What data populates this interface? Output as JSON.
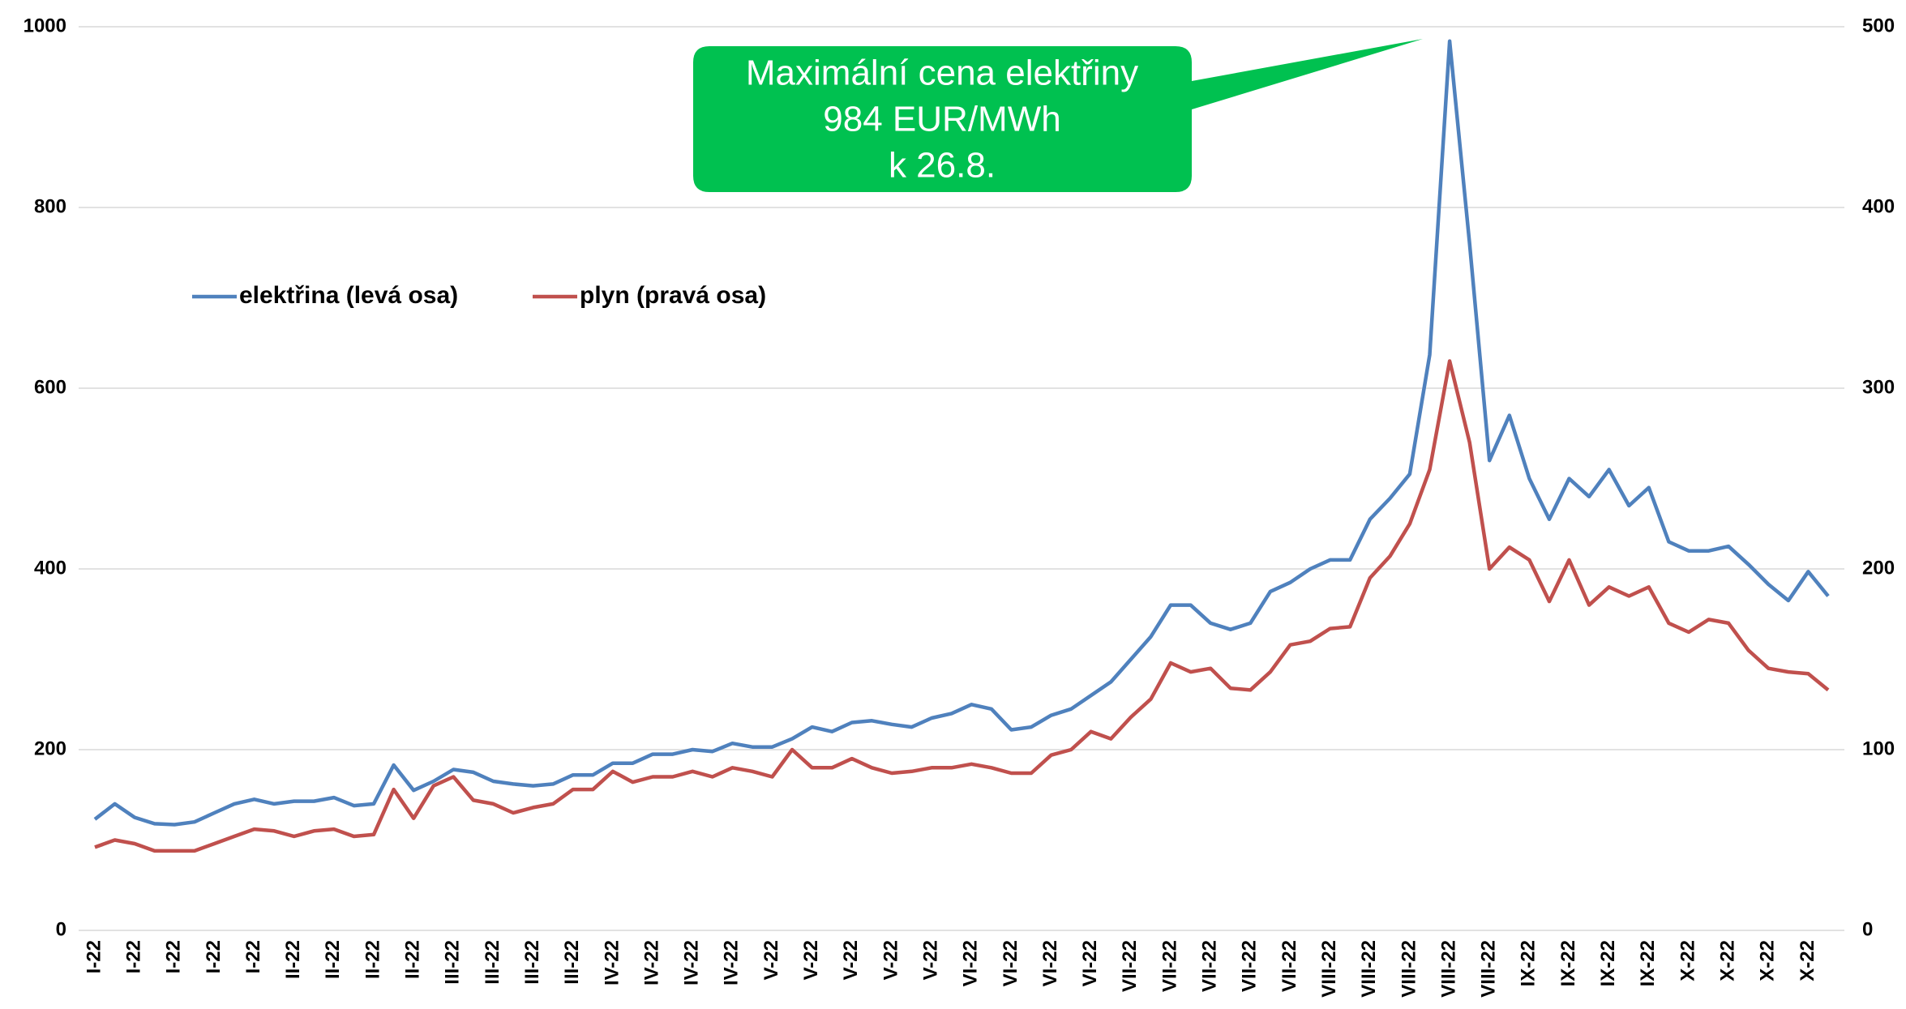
{
  "chart_data": {
    "type": "line",
    "categories": [
      "I-22",
      null,
      "I-22",
      null,
      "I-22",
      null,
      "I-22",
      null,
      "I-22",
      null,
      "II-22",
      null,
      "II-22",
      null,
      "II-22",
      null,
      "II-22",
      null,
      "III-22",
      null,
      "III-22",
      null,
      "III-22",
      null,
      "III-22",
      null,
      "IV-22",
      null,
      "IV-22",
      null,
      "IV-22",
      null,
      "IV-22",
      null,
      "V-22",
      null,
      "V-22",
      null,
      "V-22",
      null,
      "V-22",
      null,
      "V-22",
      null,
      "VI-22",
      null,
      "VI-22",
      null,
      "VI-22",
      null,
      "VI-22",
      null,
      "VII-22",
      null,
      "VII-22",
      null,
      "VII-22",
      null,
      "VII-22",
      null,
      "VII-22",
      null,
      "VIII-22",
      null,
      "VIII-22",
      null,
      "VIII-22",
      null,
      "VIII-22",
      null,
      "VIII-22",
      null,
      "IX-22",
      null,
      "IX-22",
      null,
      "IX-22",
      null,
      "IX-22",
      null,
      "X-22",
      null,
      "X-22",
      null,
      "X-22",
      null,
      "X-22",
      null
    ],
    "series": [
      {
        "name": "elektřina (levá osa)",
        "color": "#4f81bd",
        "axis": "y",
        "values": [
          123,
          140,
          125,
          118,
          117,
          120,
          130,
          140,
          145,
          140,
          143,
          143,
          147,
          138,
          140,
          183,
          155,
          165,
          178,
          175,
          165,
          162,
          160,
          162,
          172,
          172,
          185,
          185,
          195,
          195,
          200,
          198,
          207,
          203,
          203,
          212,
          225,
          220,
          230,
          232,
          228,
          225,
          235,
          240,
          250,
          245,
          222,
          225,
          238,
          245,
          260,
          275,
          300,
          325,
          360,
          360,
          340,
          333,
          340,
          375,
          385,
          400,
          410,
          410,
          455,
          478,
          505,
          637,
          984,
          760,
          520,
          570,
          500,
          455,
          500,
          480,
          510,
          470,
          490,
          430,
          420,
          420,
          425,
          405,
          383,
          365,
          397,
          370
        ]
      },
      {
        "name": "plyn (pravá osa)",
        "color": "#c0504d",
        "axis": "y2",
        "values": [
          46,
          50,
          48,
          44,
          44,
          44,
          48,
          52,
          56,
          55,
          52,
          55,
          56,
          52,
          53,
          78,
          62,
          80,
          85,
          72,
          70,
          65,
          68,
          70,
          78,
          78,
          88,
          82,
          85,
          85,
          88,
          85,
          90,
          88,
          85,
          100,
          90,
          90,
          95,
          90,
          87,
          88,
          90,
          90,
          92,
          90,
          87,
          87,
          97,
          100,
          110,
          106,
          118,
          128,
          148,
          143,
          145,
          134,
          133,
          143,
          158,
          160,
          167,
          168,
          195,
          207,
          225,
          255,
          315,
          270,
          200,
          212,
          205,
          182,
          205,
          180,
          190,
          185,
          190,
          170,
          165,
          172,
          170,
          155,
          145,
          143,
          142,
          133
        ]
      }
    ],
    "ylim": [
      0,
      1000
    ],
    "yticks": [
      0,
      200,
      400,
      600,
      800,
      1000
    ],
    "y2lim": [
      0,
      500
    ],
    "y2ticks": [
      0,
      100,
      200,
      300,
      400,
      500
    ],
    "grid": true,
    "legend": "top-left",
    "annotation": [
      "Maximální cena elektřiny",
      "984 EUR/MWh",
      "k 26.8."
    ]
  }
}
